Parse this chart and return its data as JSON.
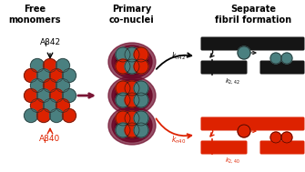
{
  "title_left": "Free\nmonomers",
  "title_mid": "Primary\nco-nuclei",
  "title_right": "Separate\nfibril formation",
  "ab42_label": "Aβ42",
  "ab40_label": "Aβ40",
  "gray_color": "#4a8080",
  "red_color": "#dd2200",
  "dark_red_arrow": "#7a1535",
  "black_color": "#151515",
  "bg_color": "#ffffff",
  "fig_width": 3.35,
  "fig_height": 1.89,
  "dpi": 100
}
